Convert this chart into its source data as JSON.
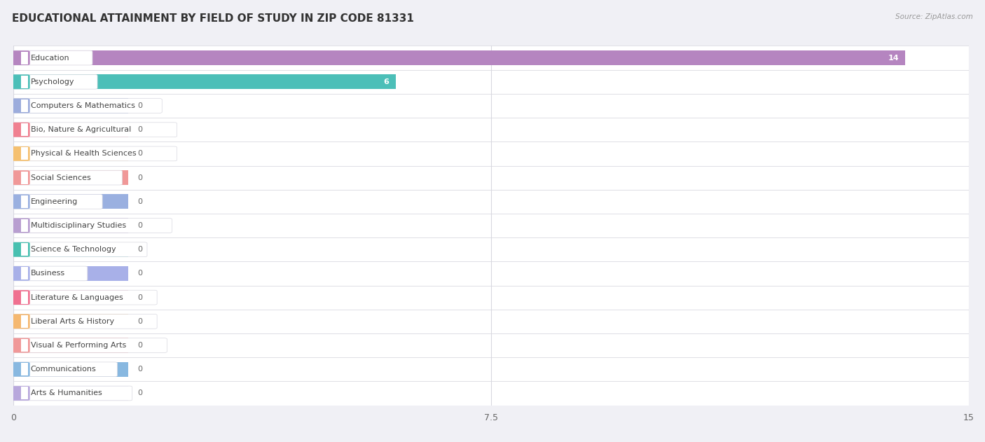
{
  "title": "EDUCATIONAL ATTAINMENT BY FIELD OF STUDY IN ZIP CODE 81331",
  "source": "Source: ZipAtlas.com",
  "categories": [
    "Education",
    "Psychology",
    "Computers & Mathematics",
    "Bio, Nature & Agricultural",
    "Physical & Health Sciences",
    "Social Sciences",
    "Engineering",
    "Multidisciplinary Studies",
    "Science & Technology",
    "Business",
    "Literature & Languages",
    "Liberal Arts & History",
    "Visual & Performing Arts",
    "Communications",
    "Arts & Humanities"
  ],
  "values": [
    14,
    6,
    0,
    0,
    0,
    0,
    0,
    0,
    0,
    0,
    0,
    0,
    0,
    0,
    0
  ],
  "bar_colors": [
    "#b585c0",
    "#4cbfb8",
    "#9cacdc",
    "#f08090",
    "#f5c070",
    "#f09898",
    "#9ab0e0",
    "#b89ed0",
    "#48c0b0",
    "#a8b0e8",
    "#f07090",
    "#f5b870",
    "#f09898",
    "#88b8e0",
    "#b8a8dc"
  ],
  "xlim": [
    0,
    15
  ],
  "xticks": [
    0,
    7.5,
    15
  ],
  "background_color": "#f0f0f5",
  "row_bg_color": "#ffffff",
  "row_alt_color": "#f8f8fc",
  "grid_color": "#d8d8e0",
  "title_fontsize": 11,
  "label_fontsize": 8,
  "value_fontsize": 8,
  "bar_height": 0.62,
  "stub_value": 1.8
}
